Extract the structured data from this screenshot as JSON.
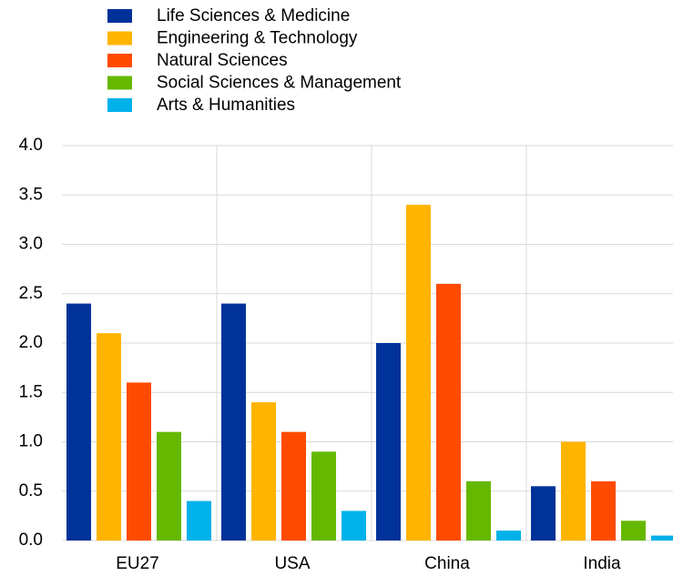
{
  "chart_data": {
    "type": "bar",
    "categories": [
      "EU27",
      "USA",
      "China",
      "India"
    ],
    "series": [
      {
        "name": "Life Sciences & Medicine",
        "color": "#003299",
        "values": [
          2.4,
          2.4,
          2.0,
          0.55
        ]
      },
      {
        "name": "Engineering & Technology",
        "color": "#ffb400",
        "values": [
          2.1,
          1.4,
          3.4,
          1.0
        ]
      },
      {
        "name": "Natural Sciences",
        "color": "#ff4b00",
        "values": [
          1.6,
          1.1,
          2.6,
          0.6
        ]
      },
      {
        "name": "Social Sciences & Management",
        "color": "#65b800",
        "values": [
          1.1,
          0.9,
          0.6,
          0.2
        ]
      },
      {
        "name": "Arts & Humanities",
        "color": "#00b1ea",
        "values": [
          0.4,
          0.3,
          0.1,
          0.05
        ]
      }
    ],
    "ylim": [
      0,
      4
    ],
    "yticks": [
      {
        "value": 0,
        "label": "0.0"
      },
      0.5,
      {
        "value": 1,
        "label": "1.0"
      },
      1.5,
      {
        "value": 2,
        "label": "2.0"
      },
      2.5,
      {
        "value": 3,
        "label": "3.0"
      },
      3.5,
      {
        "value": 4,
        "label": "4.0"
      }
    ],
    "grid": true
  }
}
